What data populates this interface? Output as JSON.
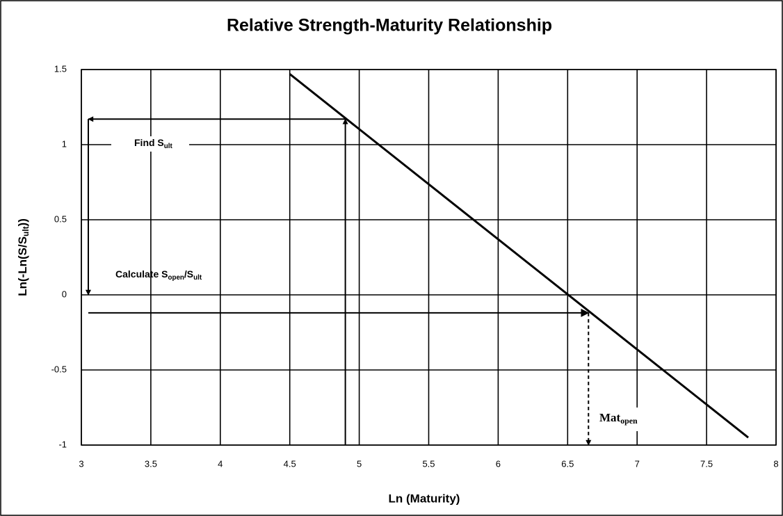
{
  "chart_data": {
    "type": "line",
    "title": "Relative Strength-Maturity Relationship",
    "x_label": "Ln (Maturity)",
    "y_label": {
      "text": "Ln(-Ln(S/S",
      "sub": "ult",
      "tail": "))"
    },
    "x": [
      4.5,
      7.8
    ],
    "values": [
      1.47,
      -0.95
    ],
    "color": "#000000",
    "xlim": [
      3,
      8
    ],
    "ylim": [
      -1,
      1.5
    ],
    "xticks": [
      3,
      3.5,
      4,
      4.5,
      5,
      5.5,
      6,
      6.5,
      7,
      7.5,
      8
    ],
    "yticks": [
      1.5,
      1,
      0.5,
      0,
      -0.5,
      -1
    ],
    "grid": true,
    "annotations": [
      {
        "text": "Find S",
        "sub": "ult",
        "tail": ""
      },
      {
        "text": "Calculate S",
        "sub": "open",
        "tail": "/S",
        "sub2": "ult"
      },
      {
        "text": "Mat",
        "sub": "open",
        "tail": ""
      }
    ],
    "arrows": [
      {
        "x": [
          4.9,
          4.9
        ],
        "y": [
          -1,
          1.17
        ],
        "dashed": false
      },
      {
        "x": [
          4.9,
          3.05
        ],
        "y": [
          1.17,
          1.17
        ],
        "dashed": false
      },
      {
        "x": [
          3.05,
          3.05
        ],
        "y": [
          1.17,
          0
        ],
        "dashed": false
      },
      {
        "x": [
          3.05,
          6.65
        ],
        "y": [
          -0.12,
          -0.12
        ],
        "dashed": false
      },
      {
        "x": [
          6.65,
          6.65
        ],
        "y": [
          -0.12,
          -1
        ],
        "dashed": true
      }
    ]
  }
}
